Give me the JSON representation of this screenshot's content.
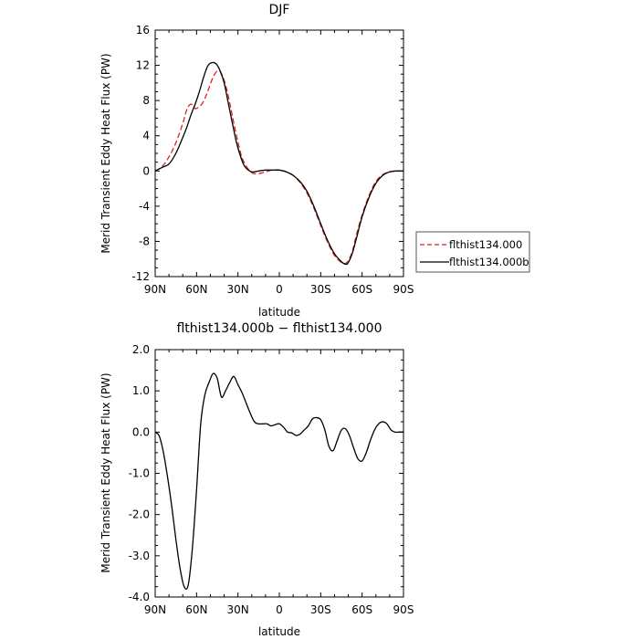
{
  "chart_data": [
    {
      "type": "line",
      "title": "DJF",
      "xlabel": "latitude",
      "ylabel": "Merid Transient Eddy Heat Flux (PW)",
      "xlim": [
        90,
        -90
      ],
      "ylim": [
        -12,
        16
      ],
      "x_ticks": [
        90,
        60,
        30,
        0,
        -30,
        -60,
        -90
      ],
      "x_tick_labels": [
        "90N",
        "60N",
        "30N",
        "0",
        "30S",
        "60S",
        "90S"
      ],
      "y_ticks": [
        -12,
        -8,
        -4,
        0,
        4,
        8,
        12,
        16
      ],
      "y_tick_labels": [
        "-12",
        "-8",
        "-4",
        "0",
        "4",
        "8",
        "12",
        "16"
      ],
      "legend_position": "right",
      "series": [
        {
          "name": "flthist134.000",
          "color": "#dd2222",
          "dash": "dashed",
          "x": [
            90,
            85,
            80,
            75,
            70,
            67,
            64,
            61,
            58,
            55,
            52,
            49,
            46,
            43,
            40,
            37,
            34,
            31,
            28,
            25,
            20,
            15,
            10,
            5,
            0,
            -5,
            -10,
            -15,
            -20,
            -25,
            -30,
            -35,
            -40,
            -45,
            -48,
            -50,
            -53,
            -56,
            -60,
            -65,
            -70,
            -75,
            -80,
            -85,
            -90
          ],
          "y": [
            0,
            0.5,
            1.6,
            3.2,
            5.4,
            7.0,
            7.6,
            7.1,
            7.3,
            7.9,
            9.0,
            10.3,
            11.2,
            11.3,
            10.3,
            8.5,
            6.2,
            4.0,
            2.0,
            0.8,
            -0.2,
            -0.3,
            -0.1,
            0.1,
            0.1,
            -0.1,
            -0.5,
            -1.3,
            -2.5,
            -4.2,
            -6.2,
            -8.1,
            -9.6,
            -10.4,
            -10.5,
            -10.2,
            -9.1,
            -7.2,
            -5.0,
            -2.8,
            -1.2,
            -0.4,
            -0.1,
            0,
            0
          ]
        },
        {
          "name": "flthist134.000b",
          "color": "#000000",
          "dash": "solid",
          "x": [
            90,
            85,
            80,
            75,
            70,
            67,
            64,
            61,
            58,
            55,
            52,
            49,
            46,
            43,
            40,
            37,
            34,
            31,
            28,
            25,
            20,
            15,
            10,
            5,
            0,
            -5,
            -10,
            -15,
            -20,
            -25,
            -30,
            -35,
            -40,
            -45,
            -48,
            -50,
            -53,
            -56,
            -60,
            -65,
            -70,
            -75,
            -80,
            -85,
            -90
          ],
          "y": [
            0,
            0.4,
            0.8,
            2.0,
            3.8,
            5.0,
            6.4,
            7.6,
            9.0,
            10.6,
            11.9,
            12.3,
            12.2,
            11.4,
            10.0,
            7.7,
            5.4,
            3.2,
            1.6,
            0.5,
            -0.1,
            0,
            0.1,
            0.1,
            0.1,
            -0.1,
            -0.5,
            -1.2,
            -2.3,
            -4.0,
            -6.0,
            -7.9,
            -9.4,
            -10.3,
            -10.6,
            -10.4,
            -9.3,
            -7.6,
            -5.2,
            -3.0,
            -1.4,
            -0.5,
            -0.1,
            0,
            0
          ]
        }
      ]
    },
    {
      "type": "line",
      "title": "flthist134.000b − flthist134.000",
      "xlabel": "latitude",
      "ylabel": "Merid Transient Eddy Heat Flux (PW)",
      "xlim": [
        90,
        -90
      ],
      "ylim": [
        -4,
        2
      ],
      "x_ticks": [
        90,
        60,
        30,
        0,
        -30,
        -60,
        -90
      ],
      "x_tick_labels": [
        "90N",
        "60N",
        "30N",
        "0",
        "30S",
        "60S",
        "90S"
      ],
      "y_ticks": [
        -4,
        -3,
        -2,
        -1,
        0,
        1,
        2
      ],
      "y_tick_labels": [
        "-4.0",
        "-3.0",
        "-2.0",
        "-1.0",
        "0.0",
        "1.0",
        "2.0"
      ],
      "series": [
        {
          "color": "#000000",
          "dash": "solid",
          "x": [
            90,
            87,
            84,
            81,
            78,
            75,
            72,
            69,
            66,
            63,
            60,
            57,
            54,
            51,
            48,
            45,
            42,
            39,
            36,
            33,
            30,
            27,
            24,
            21,
            18,
            15,
            12,
            9,
            6,
            3,
            0,
            -3,
            -6,
            -9,
            -12,
            -15,
            -18,
            -21,
            -24,
            -27,
            -30,
            -33,
            -36,
            -39,
            -42,
            -45,
            -48,
            -51,
            -54,
            -57,
            -60,
            -63,
            -66,
            -69,
            -72,
            -75,
            -78,
            -81,
            -84,
            -87,
            -90
          ],
          "y": [
            0,
            -0.1,
            -0.5,
            -1.1,
            -1.8,
            -2.6,
            -3.3,
            -3.75,
            -3.7,
            -2.8,
            -1.4,
            0.2,
            0.9,
            1.2,
            1.42,
            1.3,
            0.85,
            1.0,
            1.2,
            1.35,
            1.15,
            0.95,
            0.7,
            0.45,
            0.25,
            0.2,
            0.2,
            0.2,
            0.15,
            0.18,
            0.2,
            0.12,
            0.0,
            -0.02,
            -0.08,
            -0.05,
            0.05,
            0.15,
            0.32,
            0.35,
            0.3,
            0.05,
            -0.35,
            -0.45,
            -0.2,
            0.05,
            0.08,
            -0.1,
            -0.4,
            -0.65,
            -0.7,
            -0.5,
            -0.2,
            0.05,
            0.2,
            0.25,
            0.2,
            0.05,
            0,
            0,
            0
          ]
        }
      ]
    }
  ]
}
